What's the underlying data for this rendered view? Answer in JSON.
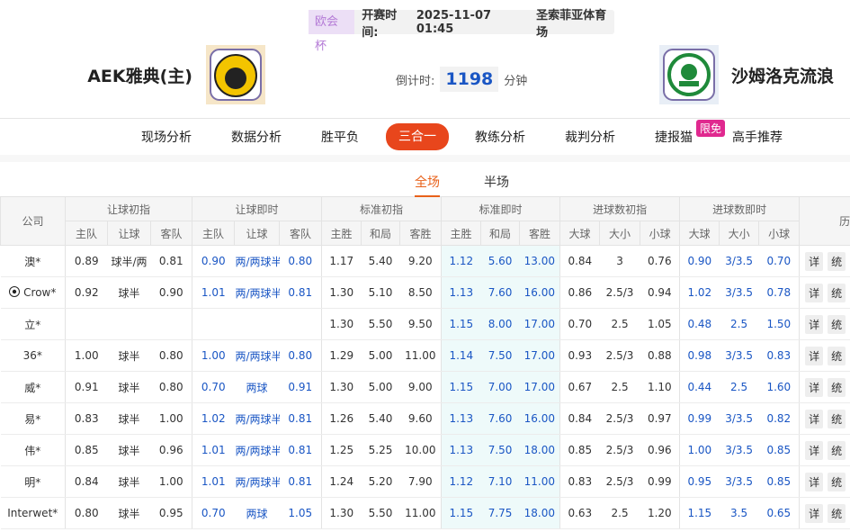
{
  "header": {
    "league": "欧会杯",
    "kickoff_label": "开赛时间:",
    "kickoff": "2025-11-07 01:45",
    "venue": "圣索菲亚体育场",
    "home": "AEK雅典(主)",
    "away": "沙姆洛克流浪",
    "countdown_label": "倒计时:",
    "countdown": "1198",
    "countdown_unit": "分钟"
  },
  "nav": {
    "tabs": [
      "现场分析",
      "数据分析",
      "胜平负",
      "三合一",
      "教练分析",
      "裁判分析",
      "捷报猫",
      "高手推荐"
    ],
    "active": 3,
    "badge": "限免",
    "badge_tab": 6
  },
  "subtabs": {
    "tabs": [
      "全场",
      "半场"
    ],
    "active": 0
  },
  "table": {
    "company_header": "公司",
    "groups": [
      "让球初指",
      "让球即时",
      "标准初指",
      "标准即时",
      "进球数初指",
      "进球数即时"
    ],
    "last_group": "历",
    "subheaders": [
      "主队",
      "让球",
      "客队",
      "主队",
      "让球",
      "客队",
      "主胜",
      "和局",
      "客胜",
      "主胜",
      "和局",
      "客胜",
      "大球",
      "大小",
      "小球",
      "大球",
      "大小",
      "小球"
    ],
    "actions": [
      "详",
      "统"
    ],
    "rows": [
      {
        "company": "澳*",
        "cells": [
          "0.89",
          "球半/两",
          "0.81",
          "0.90",
          "两/两球半",
          "0.80",
          "1.17",
          "5.40",
          "9.20",
          "1.12",
          "5.60",
          "13.00",
          "0.84",
          "3",
          "0.76",
          "0.90",
          "3/3.5",
          "0.70"
        ]
      },
      {
        "company": "Crow*",
        "cells": [
          "0.92",
          "球半",
          "0.90",
          "1.01",
          "两/两球半",
          "0.81",
          "1.30",
          "5.10",
          "8.50",
          "1.13",
          "7.60",
          "16.00",
          "0.86",
          "2.5/3",
          "0.94",
          "1.02",
          "3/3.5",
          "0.78"
        ]
      },
      {
        "company": "立*",
        "cells": [
          null,
          null,
          null,
          null,
          null,
          null,
          "1.30",
          "5.50",
          "9.50",
          "1.15",
          "8.00",
          "17.00",
          "0.70",
          "2.5",
          "1.05",
          "0.48",
          "2.5",
          "1.50"
        ]
      },
      {
        "company": "36*",
        "cells": [
          "1.00",
          "球半",
          "0.80",
          "1.00",
          "两/两球半",
          "0.80",
          "1.29",
          "5.00",
          "11.00",
          "1.14",
          "7.50",
          "17.00",
          "0.93",
          "2.5/3",
          "0.88",
          "0.98",
          "3/3.5",
          "0.83"
        ]
      },
      {
        "company": "威*",
        "cells": [
          "0.91",
          "球半",
          "0.80",
          "0.70",
          "两球",
          "0.91",
          "1.30",
          "5.00",
          "9.00",
          "1.15",
          "7.00",
          "17.00",
          "0.67",
          "2.5",
          "1.10",
          "0.44",
          "2.5",
          "1.60"
        ]
      },
      {
        "company": "易*",
        "cells": [
          "0.83",
          "球半",
          "1.00",
          "1.02",
          "两/两球半",
          "0.81",
          "1.26",
          "5.40",
          "9.60",
          "1.13",
          "7.60",
          "16.00",
          "0.84",
          "2.5/3",
          "0.97",
          "0.99",
          "3/3.5",
          "0.82"
        ]
      },
      {
        "company": "伟*",
        "cells": [
          "0.85",
          "球半",
          "0.96",
          "1.01",
          "两/两球半",
          "0.81",
          "1.25",
          "5.25",
          "10.00",
          "1.13",
          "7.50",
          "18.00",
          "0.85",
          "2.5/3",
          "0.96",
          "1.00",
          "3/3.5",
          "0.85"
        ]
      },
      {
        "company": "明*",
        "cells": [
          "0.84",
          "球半",
          "1.00",
          "1.01",
          "两/两球半",
          "0.81",
          "1.24",
          "5.20",
          "7.90",
          "1.12",
          "7.10",
          "11.00",
          "0.83",
          "2.5/3",
          "0.99",
          "0.95",
          "3/3.5",
          "0.85"
        ]
      },
      {
        "company": "Interwet*",
        "cells": [
          "0.80",
          "球半",
          "0.95",
          "0.70",
          "两球",
          "1.05",
          "1.30",
          "5.50",
          "11.00",
          "1.15",
          "7.75",
          "18.00",
          "0.63",
          "2.5",
          "1.20",
          "1.15",
          "3.5",
          "0.65"
        ]
      }
    ]
  }
}
